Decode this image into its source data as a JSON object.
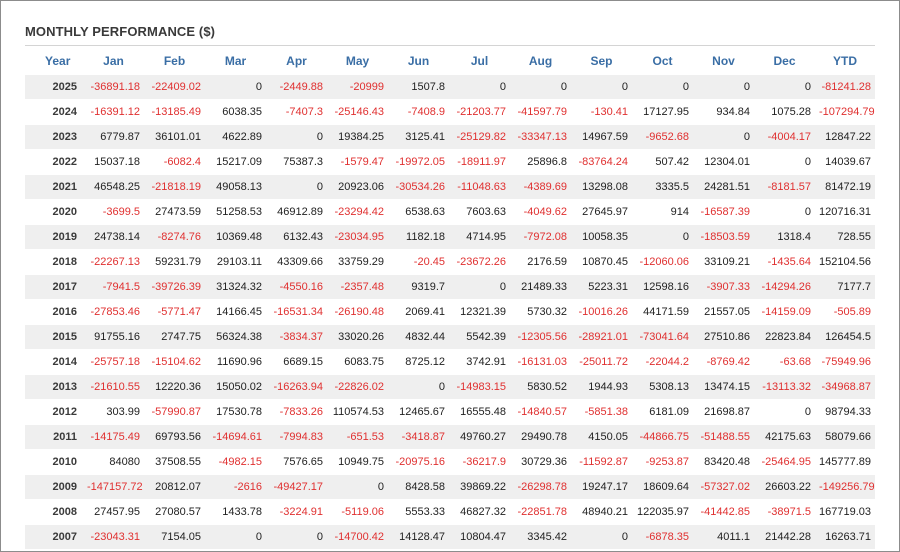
{
  "title": "MONTHLY PERFORMANCE ($)",
  "colors": {
    "negative": "#e03030",
    "header": "#3a6ea5",
    "stripe": "#efefef"
  },
  "headers": [
    "Year",
    "Jan",
    "Feb",
    "Mar",
    "Apr",
    "May",
    "Jun",
    "Jul",
    "Aug",
    "Sep",
    "Oct",
    "Nov",
    "Dec",
    "YTD"
  ],
  "rows": [
    [
      "2025",
      "-36891.18",
      "-22409.02",
      "0",
      "-2449.88",
      "-20999",
      "1507.8",
      "0",
      "0",
      "0",
      "0",
      "0",
      "0",
      "-81241.28"
    ],
    [
      "2024",
      "-16391.12",
      "-13185.49",
      "6038.35",
      "-7407.3",
      "-25146.43",
      "-7408.9",
      "-21203.77",
      "-41597.79",
      "-130.41",
      "17127.95",
      "934.84",
      "1075.28",
      "-107294.79"
    ],
    [
      "2023",
      "6779.87",
      "36101.01",
      "4622.89",
      "0",
      "19384.25",
      "3125.41",
      "-25129.82",
      "-33347.13",
      "14967.59",
      "-9652.68",
      "0",
      "-4004.17",
      "12847.22"
    ],
    [
      "2022",
      "15037.18",
      "-6082.4",
      "15217.09",
      "75387.3",
      "-1579.47",
      "-19972.05",
      "-18911.97",
      "25896.8",
      "-83764.24",
      "507.42",
      "12304.01",
      "0",
      "14039.67"
    ],
    [
      "2021",
      "46548.25",
      "-21818.19",
      "49058.13",
      "0",
      "20923.06",
      "-30534.26",
      "-11048.63",
      "-4389.69",
      "13298.08",
      "3335.5",
      "24281.51",
      "-8181.57",
      "81472.19"
    ],
    [
      "2020",
      "-3699.5",
      "27473.59",
      "51258.53",
      "46912.89",
      "-23294.42",
      "6538.63",
      "7603.63",
      "-4049.62",
      "27645.97",
      "914",
      "-16587.39",
      "0",
      "120716.31"
    ],
    [
      "2019",
      "24738.14",
      "-8274.76",
      "10369.48",
      "6132.43",
      "-23034.95",
      "1182.18",
      "4714.95",
      "-7972.08",
      "10058.35",
      "0",
      "-18503.59",
      "1318.4",
      "728.55"
    ],
    [
      "2018",
      "-22267.13",
      "59231.79",
      "29103.11",
      "43309.66",
      "33759.29",
      "-20.45",
      "-23672.26",
      "2176.59",
      "10870.45",
      "-12060.06",
      "33109.21",
      "-1435.64",
      "152104.56"
    ],
    [
      "2017",
      "-7941.5",
      "-39726.39",
      "31324.32",
      "-4550.16",
      "-2357.48",
      "9319.7",
      "0",
      "21489.33",
      "5223.31",
      "12598.16",
      "-3907.33",
      "-14294.26",
      "7177.7"
    ],
    [
      "2016",
      "-27853.46",
      "-5771.47",
      "14166.45",
      "-16531.34",
      "-26190.48",
      "2069.41",
      "12321.39",
      "5730.32",
      "-10016.26",
      "44171.59",
      "21557.05",
      "-14159.09",
      "-505.89"
    ],
    [
      "2015",
      "91755.16",
      "2747.75",
      "56324.38",
      "-3834.37",
      "33020.26",
      "4832.44",
      "5542.39",
      "-12305.56",
      "-28921.01",
      "-73041.64",
      "27510.86",
      "22823.84",
      "126454.5"
    ],
    [
      "2014",
      "-25757.18",
      "-15104.62",
      "11690.96",
      "6689.15",
      "6083.75",
      "8725.12",
      "3742.91",
      "-16131.03",
      "-25011.72",
      "-22044.2",
      "-8769.42",
      "-63.68",
      "-75949.96"
    ],
    [
      "2013",
      "-21610.55",
      "12220.36",
      "15050.02",
      "-16263.94",
      "-22826.02",
      "0",
      "-14983.15",
      "5830.52",
      "1944.93",
      "5308.13",
      "13474.15",
      "-13113.32",
      "-34968.87"
    ],
    [
      "2012",
      "303.99",
      "-57990.87",
      "17530.78",
      "-7833.26",
      "110574.53",
      "12465.67",
      "16555.48",
      "-14840.57",
      "-5851.38",
      "6181.09",
      "21698.87",
      "0",
      "98794.33"
    ],
    [
      "2011",
      "-14175.49",
      "69793.56",
      "-14694.61",
      "-7994.83",
      "-651.53",
      "-3418.87",
      "49760.27",
      "29490.78",
      "4150.05",
      "-44866.75",
      "-51488.55",
      "42175.63",
      "58079.66"
    ],
    [
      "2010",
      "84080",
      "37508.55",
      "-4982.15",
      "7576.65",
      "10949.75",
      "-20975.16",
      "-36217.9",
      "30729.36",
      "-11592.87",
      "-9253.87",
      "83420.48",
      "-25464.95",
      "145777.89"
    ],
    [
      "2009",
      "-147157.72",
      "20812.07",
      "-2616",
      "-49427.17",
      "0",
      "8428.58",
      "39869.22",
      "-26298.78",
      "19247.17",
      "18609.64",
      "-57327.02",
      "26603.22",
      "-149256.79"
    ],
    [
      "2008",
      "27457.95",
      "27080.57",
      "1433.78",
      "-3224.91",
      "-5119.06",
      "5553.33",
      "46827.32",
      "-22851.78",
      "48940.21",
      "122035.97",
      "-41442.85",
      "-38971.5",
      "167719.03"
    ],
    [
      "2007",
      "-23043.31",
      "7154.05",
      "0",
      "0",
      "-14700.42",
      "14128.47",
      "10804.47",
      "3345.42",
      "0",
      "-6878.35",
      "4011.1",
      "21442.28",
      "16263.71"
    ]
  ]
}
